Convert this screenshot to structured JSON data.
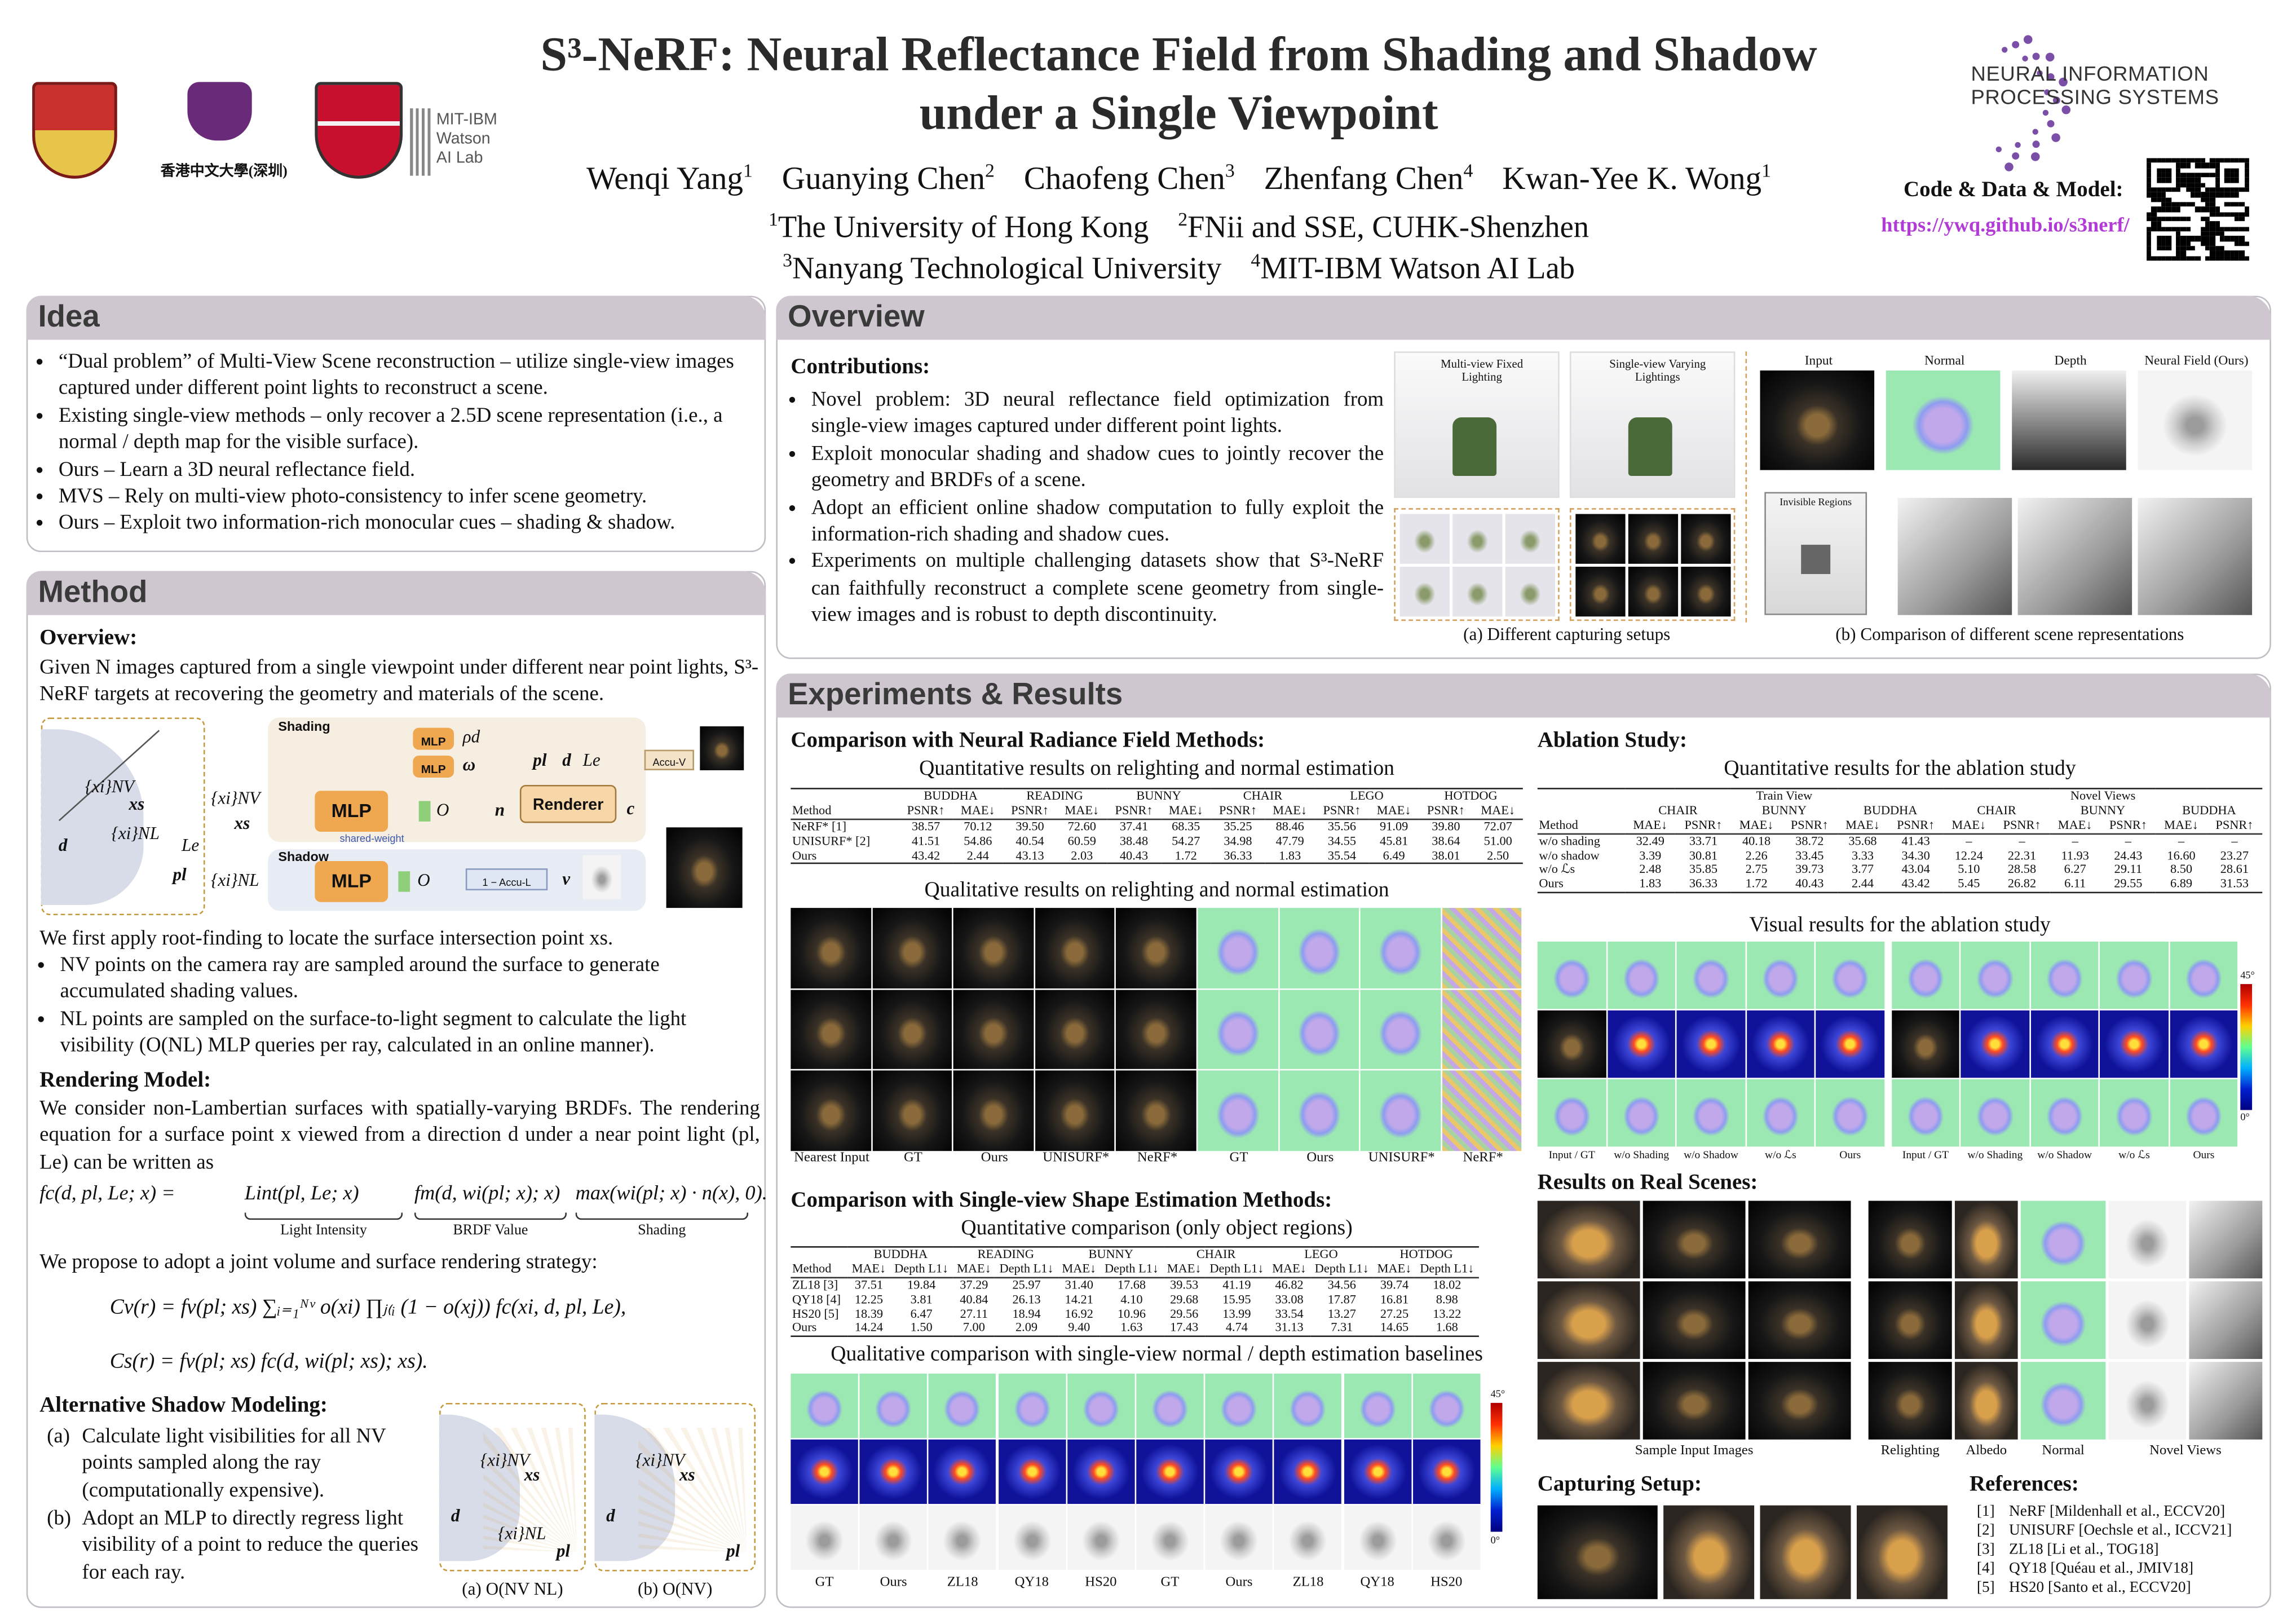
{
  "header": {
    "title": [
      "S³-NeRF: Neural Reflectance Field from Shading and Shadow",
      "under a Single Viewpoint"
    ],
    "authors": [
      {
        "name": "Wenqi Yang",
        "aff": "1"
      },
      {
        "name": "Guanying Chen",
        "aff": "2"
      },
      {
        "name": "Chaofeng Chen",
        "aff": "3"
      },
      {
        "name": "Zhenfang Chen",
        "aff": "4"
      },
      {
        "name": "Kwan-Yee K. Wong",
        "aff": "1"
      }
    ],
    "affiliations": [
      {
        "num": "1",
        "name": "The University of Hong Kong"
      },
      {
        "num": "2",
        "name": "FNii and SSE, CUHK-Shenzhen"
      },
      {
        "num": "3",
        "name": "Nanyang Technological University"
      },
      {
        "num": "4",
        "name": "MIT-IBM Watson AI Lab"
      }
    ],
    "code_label": "Code & Data & Model:",
    "url": "https://ywq.github.io/s3nerf/",
    "cuhk_name": "香港中文大學(深圳)",
    "mit_ibm": [
      "MIT-IBM",
      "Watson",
      "AI Lab"
    ],
    "neurips": [
      "NEURAL INFORMATION",
      "PROCESSING SYSTEMS"
    ]
  },
  "idea": {
    "heading": "Idea",
    "bullets": [
      "“Dual problem” of Multi-View Scene reconstruction – utilize single-view images captured under different point lights to reconstruct a scene.",
      "Existing single-view methods – only recover a 2.5D scene representation (i.e., a normal / depth map for the visible surface).",
      "Ours – Learn a 3D neural reflectance field.",
      "MVS – Rely on multi-view photo-consistency to infer scene geometry.",
      "Ours – Exploit two information-rich monocular cues – shading & shadow."
    ]
  },
  "method": {
    "heading": "Method",
    "overview_heading": "Overview:",
    "overview_text": "Given N images captured from a single viewpoint under different near point lights, S³-NeRF targets at recovering the geometry and materials of the scene.",
    "diagram": {
      "shading": "Shading",
      "shadow": "Shadow",
      "mlp": "MLP",
      "renderer": "Renderer",
      "shared": "shared-weight",
      "accu_v": "Accu-V",
      "accu_l": "1 − Accu-L",
      "rho": "ρd",
      "omega": "ω",
      "n": "n",
      "c": "c",
      "v": "v",
      "o": "O",
      "xi_nv": "{xi}NV",
      "xs": "xs",
      "xi_nl": "{xi}NL",
      "d": "d",
      "pl": "pl",
      "le": "Le"
    },
    "after_text": "We first apply root-finding to locate the surface intersection point xs.",
    "bullets": [
      "NV points on the camera ray are sampled around the surface to generate accumulated shading values.",
      "NL points are sampled on the surface-to-light segment to calculate the light visibility (O(NL) MLP queries per ray, calculated in an online manner)."
    ],
    "rendering_heading": "Rendering Model:",
    "rendering_text": "We consider non-Lambertian surfaces with spatially-varying BRDFs. The rendering equation for a surface point x viewed from a direction d under a near point light (pl, Le) can be written as",
    "eq1": [
      "fc(d, pl, Le; x) =",
      "Lint(pl, Le; x)",
      "fm(d, wi(pl; x); x)",
      "max(wi(pl; x) · n(x), 0)."
    ],
    "eq1_labels": [
      "Light Intensity",
      "BRDF Value",
      "Shading"
    ],
    "joint_text": "We propose to adopt a joint volume and surface rendering strategy:",
    "eq2": "Cv(r) = fv(pl; xs) ∑ᵢ₌₁ᴺᵛ o(xi) ∏ⱼ₍ᵢ (1 − o(xj)) fc(xi, d, pl, Le),",
    "eq3": "Cs(r) = fv(pl; xs) fc(d, wi(pl; xs); xs).",
    "alt_heading": "Alternative Shadow Modeling:",
    "alt_items": [
      {
        "tag": "(a)",
        "text": "Calculate light visibilities for all NV points sampled along the ray (computationally expensive)."
      },
      {
        "tag": "(b)",
        "text": "Adopt an MLP to directly regress light visibility of a point to reduce the queries for each ray."
      }
    ],
    "alt_captions": [
      "(a) O(NV NL)",
      "(b) O(NV)"
    ]
  },
  "overview": {
    "heading": "Overview",
    "contributions_heading": "Contributions:",
    "bullets": [
      "Novel problem: 3D neural reflectance field optimization from single-view images captured under different point lights.",
      "Exploit monocular shading and shadow cues to jointly recover the geometry and BRDFs of a scene.",
      "Adopt an efficient online shadow computation to fully exploit the information-rich shading and shadow cues.",
      "Experiments on multiple challenging datasets show that S³-NeRF can faithfully reconstruct a complete scene geometry from single-view images and is robust to depth discontinuity."
    ],
    "fig_a_labels": [
      "Multi-view Fixed Lighting",
      "Single-view Varying Lightings"
    ],
    "fig_a_caption": "(a) Different capturing setups",
    "fig_b_labels": [
      "Input",
      "Normal",
      "Depth",
      "Neural Field (Ours)"
    ],
    "fig_b_invisible": "Invisible Regions",
    "fig_b_caption": "(b) Comparison of different scene representations"
  },
  "experiments": {
    "heading": "Experiments & Results",
    "nerf_heading": "Comparison with Neural Radiance Field Methods:",
    "relight_table": {
      "caption": "Quantitative results on relighting and normal estimation",
      "stub": "Method",
      "groups": [
        "BUDDHA",
        "READING",
        "BUNNY",
        "CHAIR",
        "LEGO",
        "HOTDOG"
      ],
      "columns": [
        "PSNR↑",
        "MAE↓"
      ],
      "rows": [
        {
          "name": "NeRF* [1]",
          "cells": [
            "38.57",
            "70.12",
            "39.50",
            "72.60",
            "37.41",
            "68.35",
            "35.25",
            "88.46",
            "35.56",
            "91.09",
            "39.80",
            "72.07"
          ]
        },
        {
          "name": "UNISURF* [2]",
          "cells": [
            "41.51",
            "54.86",
            "40.54",
            "60.59",
            "38.48",
            "54.27",
            "34.98",
            "47.79",
            "34.55",
            "45.81",
            "38.64",
            "51.00"
          ]
        },
        {
          "name": "Ours",
          "cells": [
            "43.42",
            "2.44",
            "43.13",
            "2.03",
            "40.43",
            "1.72",
            "36.33",
            "1.83",
            "35.54",
            "6.49",
            "38.01",
            "2.50"
          ]
        }
      ]
    },
    "relight_qual_caption": "Qualitative results on relighting and normal estimation",
    "relight_qual_labels": [
      "Nearest Input",
      "GT",
      "Ours",
      "UNISURF*",
      "NeRF*",
      "GT",
      "Ours",
      "UNISURF*",
      "NeRF*"
    ],
    "shape_heading": "Comparison with Single-view Shape Estimation Methods:",
    "shape_table": {
      "caption": "Quantitative comparison (only object regions)",
      "stub": "Method",
      "groups": [
        "BUDDHA",
        "READING",
        "BUNNY",
        "CHAIR",
        "LEGO",
        "HOTDOG"
      ],
      "columns": [
        "MAE↓",
        "Depth L1↓"
      ],
      "rows": [
        {
          "name": "ZL18 [3]",
          "cells": [
            "37.51",
            "19.84",
            "37.29",
            "25.97",
            "31.40",
            "17.68",
            "39.53",
            "41.19",
            "46.82",
            "34.56",
            "39.74",
            "18.02"
          ]
        },
        {
          "name": "QY18 [4]",
          "cells": [
            "12.25",
            "3.81",
            "40.84",
            "26.13",
            "14.21",
            "4.10",
            "29.68",
            "15.95",
            "33.08",
            "17.87",
            "16.81",
            "8.98"
          ]
        },
        {
          "name": "HS20 [5]",
          "cells": [
            "18.39",
            "6.47",
            "27.11",
            "18.94",
            "16.92",
            "10.96",
            "29.56",
            "13.99",
            "33.54",
            "13.27",
            "27.25",
            "13.22"
          ]
        },
        {
          "name": "Ours",
          "cells": [
            "14.24",
            "1.50",
            "7.00",
            "2.09",
            "9.40",
            "1.63",
            "17.43",
            "4.74",
            "31.13",
            "7.31",
            "14.65",
            "1.68"
          ]
        }
      ]
    },
    "shape_qual_caption": "Qualitative comparison with single-view normal / depth estimation baselines",
    "shape_qual_labels": [
      "GT",
      "Ours",
      "ZL18",
      "QY18",
      "HS20",
      "GT",
      "Ours",
      "ZL18",
      "QY18",
      "HS20"
    ],
    "colorbar": [
      "45°",
      "0°"
    ],
    "ablation_heading": "Ablation Study:",
    "ablation_table": {
      "caption": "Quantitative results for the ablation study",
      "stub": "Method",
      "supergroups": [
        "Train View",
        "Novel Views"
      ],
      "groups": [
        "CHAIR",
        "BUNNY",
        "BUDDHA",
        "CHAIR",
        "BUNNY",
        "BUDDHA"
      ],
      "columns": [
        "MAE↓",
        "PSNR↑"
      ],
      "rows": [
        {
          "name": "w/o shading",
          "cells": [
            "32.49",
            "33.71",
            "40.18",
            "38.72",
            "35.68",
            "41.43",
            "–",
            "–",
            "–",
            "–",
            "–",
            "–"
          ]
        },
        {
          "name": "w/o shadow",
          "cells": [
            "3.39",
            "30.81",
            "2.26",
            "33.45",
            "3.33",
            "34.30",
            "12.24",
            "22.31",
            "11.93",
            "24.43",
            "16.60",
            "23.27"
          ]
        },
        {
          "name": "w/o ℒs",
          "cells": [
            "2.48",
            "35.85",
            "2.75",
            "39.73",
            "3.77",
            "43.04",
            "5.10",
            "28.58",
            "6.27",
            "29.11",
            "8.50",
            "28.61"
          ]
        },
        {
          "name": "Ours",
          "cells": [
            "1.83",
            "36.33",
            "1.72",
            "40.43",
            "2.44",
            "43.42",
            "5.45",
            "26.82",
            "6.11",
            "29.55",
            "6.89",
            "31.53"
          ]
        }
      ]
    },
    "ablation_qual_caption": "Visual results for the ablation study",
    "ablation_qual_labels": [
      "Input / GT",
      "w/o Shading",
      "w/o Shadow",
      "w/o ℒs",
      "Ours",
      "Input / GT",
      "w/o Shading",
      "w/o Shadow",
      "w/o ℒs",
      "Ours"
    ],
    "real_heading": "Results on Real Scenes:",
    "real_labels": [
      "Sample Input Images",
      "Relighting",
      "Albedo",
      "Normal",
      "Novel Views"
    ],
    "capture_heading": "Capturing Setup:",
    "references_heading": "References:",
    "references": [
      {
        "tag": "[1]",
        "text": "NeRF [Mildenhall et al., ECCV20]"
      },
      {
        "tag": "[2]",
        "text": "UNISURF [Oechsle et al., ICCV21]"
      },
      {
        "tag": "[3]",
        "text": "ZL18 [Li et al., TOG18]"
      },
      {
        "tag": "[4]",
        "text": "QY18 [Quéau et al., JMIV18]"
      },
      {
        "tag": "[5]",
        "text": "HS20 [Santo et al., ECCV20]"
      }
    ]
  }
}
